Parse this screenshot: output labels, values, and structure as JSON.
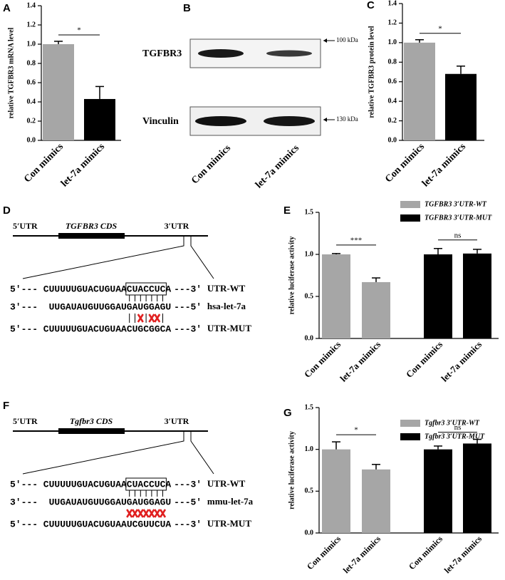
{
  "chart_data": [
    {
      "type": "bar",
      "panel": "A",
      "ylabel": "relative TGFBR3 mRNA level",
      "categories": [
        "Con mimics",
        "let-7a mimics"
      ],
      "values": [
        1,
        0.43
      ],
      "errors": [
        0.03,
        0.13
      ],
      "colors": [
        "#a6a6a6",
        "#000000"
      ],
      "ylim": [
        0,
        1.4
      ],
      "yticks": [
        {
          "value": 0,
          "label": "0.0"
        },
        0.2,
        0.4,
        0.6,
        0.8,
        {
          "value": 1,
          "label": "1.0"
        },
        1.2,
        1.4
      ],
      "significance": [
        "*"
      ]
    },
    {
      "type": "bar",
      "panel": "C",
      "ylabel": "relative TGFBR3 protein level",
      "categories": [
        "Con mimics",
        "let-7a mimics"
      ],
      "values": [
        1,
        0.68
      ],
      "errors": [
        0.03,
        0.08
      ],
      "colors": [
        "#a6a6a6",
        "#000000"
      ],
      "ylim": [
        0,
        1.4
      ],
      "yticks": [
        {
          "value": 0,
          "label": "0.0"
        },
        0.2,
        0.4,
        0.6,
        0.8,
        {
          "value": 1,
          "label": "1.0"
        },
        1.2,
        1.4
      ],
      "significance": [
        "*"
      ]
    },
    {
      "type": "bar",
      "panel": "E",
      "ylabel": "relative luciferase activity",
      "categories": [
        "Con mimics",
        "let-7a mimics"
      ],
      "series": [
        {
          "name": "TGFBR3 3′UTR-WT",
          "color": "#a6a6a6",
          "values": [
            1,
            0.67
          ],
          "errors": [
            0.01,
            0.05
          ]
        },
        {
          "name": "TGFBR3 3′UTR-MUT",
          "color": "#000000",
          "values": [
            1,
            1.01
          ],
          "errors": [
            0.07,
            0.05
          ]
        }
      ],
      "ylim": [
        0,
        1.5
      ],
      "yticks": [
        {
          "value": 0,
          "label": "0.0"
        },
        0.5,
        {
          "value": 1,
          "label": "1.0"
        },
        1.5
      ],
      "significance": [
        "***",
        "ns"
      ],
      "legend": "top-right"
    },
    {
      "type": "bar",
      "panel": "G",
      "ylabel": "relative luciferase activity",
      "categories": [
        "Con mimics",
        "let-7a mimics"
      ],
      "series": [
        {
          "name": "Tgfbr3 3′UTR-WT",
          "color": "#a6a6a6",
          "values": [
            1,
            0.76
          ],
          "errors": [
            0.09,
            0.06
          ]
        },
        {
          "name": "Tgfbr3 3′UTR-MUT",
          "color": "#000000",
          "values": [
            1,
            1.07
          ],
          "errors": [
            0.04,
            0.05
          ]
        }
      ],
      "ylim": [
        0,
        1.5
      ],
      "yticks": [
        {
          "value": 0,
          "label": "0.0"
        },
        0.5,
        {
          "value": 1,
          "label": "1.0"
        },
        1.5
      ],
      "significance": [
        "*",
        "ns"
      ],
      "legend": "top-right"
    }
  ],
  "blot": {
    "panel": "B",
    "proteins": [
      {
        "name": "TGFBR3",
        "marker": "100 kDa"
      },
      {
        "name": "Vinculin",
        "marker": "130 kDa"
      }
    ],
    "lanes": [
      "Con mimics",
      "let-7a mimics"
    ]
  },
  "diagrams": [
    {
      "panel": "D",
      "utr5": "5′UTR",
      "cds": "TGFBR3 CDS",
      "utr3": "3′UTR",
      "rows": [
        {
          "start": "5′---",
          "seq": "CUUUUUGUACUGUAA",
          "box": "CUACCUC",
          "tail": "A",
          "end": "---3′",
          "label": "UTR-WT"
        },
        {
          "start": "3′---",
          "seq": "UUGAUAUGUUGGAUGAUGGAGU",
          "end": "---5′",
          "label": "hsa-let-7a"
        },
        {
          "start": "5′---",
          "seq": "CUUUUUGUACUGUAACUGCGGCA",
          "end": "---3′",
          "label": "UTR-MUT"
        }
      ]
    },
    {
      "panel": "F",
      "utr5": "5′UTR",
      "cds": "Tgfbr3 CDS",
      "utr3": "3′UTR",
      "rows": [
        {
          "start": "5′---",
          "seq": "CUUUUUGUACUGUAA",
          "box": "CUACCUC",
          "tail": "A",
          "end": "---3′",
          "label": "UTR-WT"
        },
        {
          "start": "3′---",
          "seq": "UUGAUAUGUUGGAUGAUGGAGU",
          "end": "---5′",
          "label": "mmu-let-7a"
        },
        {
          "start": "5′---",
          "seq": "CUUUUUGUACUGUAAUCGUUCUA",
          "end": "---3′",
          "label": "UTR-MUT"
        }
      ]
    }
  ]
}
